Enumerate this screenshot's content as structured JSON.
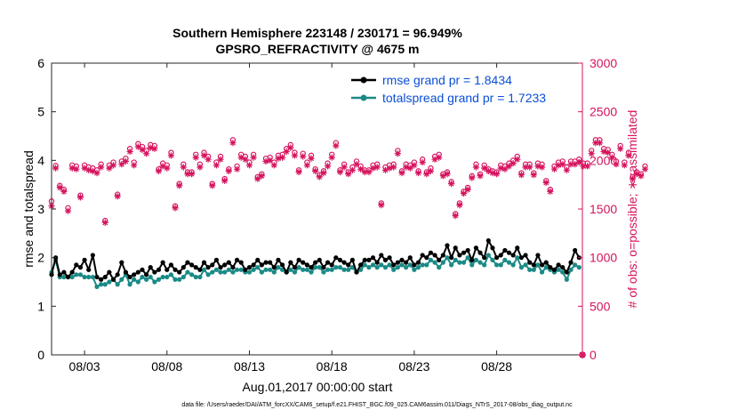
{
  "chart_data": {
    "type": "line",
    "title": "Southern Hemisphere 223148 / 230171 = 96.949%",
    "subtitle": "GPSRO_REFRACTIVITY @ 4675 m",
    "xlabel": "Aug.01,2017 00:00:00 start",
    "ylabel": "rmse and totalspread",
    "y2label": "# of obs: o=possible; ∗=assimilated",
    "xlim": [
      1,
      33.2
    ],
    "ylim": [
      0,
      6
    ],
    "y2lim": [
      0,
      3000
    ],
    "x_ticks": [
      3,
      8,
      13,
      18,
      23,
      28
    ],
    "x_tick_labels": [
      "08/03",
      "08/08",
      "08/13",
      "08/18",
      "08/23",
      "08/28"
    ],
    "y_ticks": [
      "0",
      "1",
      "2",
      "3",
      "4",
      "5",
      "6"
    ],
    "y2_ticks": [
      "0",
      "500",
      "1000",
      "1500",
      "2000",
      "2500",
      "3000"
    ],
    "legend_position": "top-right",
    "x_step_days": 0.25,
    "series": [
      {
        "name": "rmse grand pr = 1.8434",
        "axis": "left",
        "color": "#000000",
        "values": [
          1.65,
          2.0,
          1.65,
          1.7,
          1.6,
          1.7,
          1.85,
          1.8,
          1.95,
          1.75,
          2.05,
          1.6,
          1.55,
          1.6,
          1.7,
          1.55,
          1.65,
          1.9,
          1.7,
          1.6,
          1.65,
          1.7,
          1.75,
          1.65,
          1.8,
          1.7,
          1.75,
          1.9,
          1.75,
          1.85,
          1.75,
          1.7,
          1.8,
          1.9,
          1.85,
          1.8,
          1.75,
          1.9,
          1.8,
          1.85,
          1.95,
          1.8,
          1.85,
          1.9,
          1.8,
          1.95,
          1.9,
          1.75,
          1.8,
          1.85,
          1.95,
          1.85,
          1.9,
          1.9,
          1.8,
          1.95,
          1.85,
          1.7,
          1.9,
          1.8,
          1.95,
          1.9,
          1.85,
          1.8,
          1.9,
          1.95,
          1.8,
          1.9,
          1.85,
          2.0,
          1.95,
          1.9,
          1.85,
          1.95,
          1.7,
          1.85,
          1.95,
          1.95,
          2.0,
          1.9,
          2.05,
          1.95,
          2.0,
          1.85,
          1.9,
          1.95,
          1.9,
          2.0,
          1.85,
          1.9,
          2.05,
          2.0,
          2.1,
          2.05,
          1.95,
          2.05,
          2.25,
          2.0,
          2.2,
          2.05,
          2.1,
          2.15,
          1.95,
          2.2,
          2.1,
          2.0,
          2.35,
          2.2,
          2.0,
          2.05,
          2.15,
          2.1,
          2.05,
          2.2,
          2.0,
          2.05,
          1.9,
          1.85,
          2.05,
          1.85,
          1.9,
          1.8,
          1.75,
          1.85,
          1.8,
          1.7,
          1.9,
          2.15,
          2.0
        ]
      },
      {
        "name": "totalspread grand pr = 1.7233",
        "axis": "left",
        "color": "#1a8a86",
        "values": [
          1.7,
          1.95,
          1.6,
          1.6,
          1.6,
          1.6,
          1.65,
          1.65,
          1.6,
          1.6,
          1.6,
          1.4,
          1.45,
          1.45,
          1.5,
          1.55,
          1.45,
          1.55,
          1.65,
          1.45,
          1.55,
          1.5,
          1.6,
          1.55,
          1.6,
          1.5,
          1.55,
          1.6,
          1.6,
          1.65,
          1.55,
          1.55,
          1.6,
          1.7,
          1.65,
          1.6,
          1.6,
          1.75,
          1.65,
          1.7,
          1.75,
          1.7,
          1.7,
          1.75,
          1.7,
          1.75,
          1.75,
          1.7,
          1.7,
          1.75,
          1.8,
          1.7,
          1.75,
          1.75,
          1.7,
          1.8,
          1.75,
          1.7,
          1.75,
          1.7,
          1.8,
          1.75,
          1.75,
          1.7,
          1.8,
          1.8,
          1.7,
          1.75,
          1.75,
          1.8,
          1.8,
          1.75,
          1.75,
          1.8,
          1.7,
          1.75,
          1.85,
          1.8,
          1.85,
          1.8,
          1.85,
          1.8,
          1.85,
          1.75,
          1.8,
          1.85,
          1.8,
          1.85,
          1.75,
          1.8,
          1.85,
          1.85,
          1.95,
          1.9,
          1.8,
          1.9,
          2.0,
          1.85,
          1.95,
          1.9,
          1.9,
          2.0,
          1.85,
          1.95,
          1.9,
          1.85,
          2.05,
          1.95,
          1.85,
          1.85,
          1.95,
          1.9,
          1.85,
          2.0,
          1.8,
          1.85,
          1.75,
          1.75,
          1.85,
          1.7,
          1.8,
          1.75,
          1.7,
          1.75,
          1.7,
          1.55,
          1.75,
          1.85,
          1.8
        ]
      },
      {
        "name": "possible obs",
        "axis": "right",
        "color": "#d6135e",
        "marker": "o",
        "values": [
          1580,
          1945,
          1740,
          1700,
          1510,
          1950,
          1940,
          1640,
          1950,
          1930,
          1920,
          1900,
          1960,
          1380,
          1950,
          1980,
          1650,
          1990,
          2020,
          2120,
          1980,
          2170,
          2140,
          2100,
          2160,
          2150,
          1910,
          1970,
          1950,
          2080,
          1530,
          1760,
          1960,
          1880,
          1880,
          2060,
          1960,
          2080,
          2040,
          1760,
          1980,
          2040,
          1810,
          1910,
          2210,
          1940,
          2060,
          2040,
          1980,
          2060,
          1830,
          1860,
          2020,
          2030,
          1980,
          2050,
          2060,
          2120,
          2160,
          2080,
          1900,
          2070,
          1980,
          2050,
          1910,
          1850,
          1890,
          1970,
          2060,
          2180,
          1900,
          1960,
          1880,
          1930,
          1990,
          1940,
          1900,
          1900,
          1950,
          1960,
          1560,
          1930,
          1950,
          1960,
          2100,
          1890,
          1960,
          1950,
          1980,
          1890,
          2010,
          1880,
          1920,
          2040,
          2060,
          1860,
          1880,
          1780,
          1450,
          1560,
          1680,
          1720,
          1840,
          1960,
          1860,
          1950,
          1910,
          1890,
          1880,
          1950,
          1940,
          1970,
          2000,
          2040,
          1870,
          1960,
          1960,
          1870,
          1970,
          1960,
          1790,
          1700,
          1940,
          1980,
          1990,
          1930,
          1990,
          1990,
          2010,
          1970,
          1970,
          2100,
          2210,
          2210,
          2120,
          2110,
          2060,
          1990,
          2150,
          1980,
          2080,
          1830,
          1880,
          1860,
          1940
        ]
      },
      {
        "name": "assimilated obs",
        "axis": "right",
        "color": "#d6135e",
        "marker": "*",
        "values": [
          1530,
          1920,
          1720,
          1680,
          1480,
          1920,
          1910,
          1620,
          1920,
          1900,
          1890,
          1870,
          1930,
          1360,
          1920,
          1950,
          1630,
          1960,
          1990,
          2090,
          1950,
          2140,
          2110,
          2070,
          2130,
          2120,
          1890,
          1940,
          1920,
          2050,
          1510,
          1740,
          1930,
          1860,
          1860,
          2030,
          1930,
          2050,
          2010,
          1740,
          1950,
          2010,
          1790,
          1890,
          2180,
          1910,
          2030,
          2010,
          1950,
          2030,
          1810,
          1840,
          1990,
          2000,
          1950,
          2020,
          2030,
          2090,
          2130,
          2050,
          1880,
          2040,
          1950,
          2020,
          1890,
          1830,
          1870,
          1940,
          2030,
          2150,
          1880,
          1930,
          1860,
          1900,
          1960,
          1910,
          1880,
          1880,
          1920,
          1930,
          1540,
          1900,
          1920,
          1930,
          2070,
          1870,
          1930,
          1920,
          1950,
          1870,
          1980,
          1860,
          1890,
          2010,
          2030,
          1840,
          1860,
          1760,
          1430,
          1540,
          1660,
          1700,
          1820,
          1930,
          1840,
          1920,
          1890,
          1870,
          1860,
          1920,
          1910,
          1940,
          1970,
          2010,
          1850,
          1930,
          1930,
          1850,
          1940,
          1930,
          1770,
          1680,
          1910,
          1950,
          1960,
          1900,
          1960,
          1960,
          1980,
          1940,
          1940,
          2070,
          2180,
          2180,
          2090,
          2080,
          2030,
          1960,
          2120,
          1950,
          2050,
          1810,
          1860,
          1840,
          1910
        ]
      }
    ],
    "extra_points": [
      {
        "series": "possible obs",
        "x": 33.2,
        "y": 0
      },
      {
        "series": "assimilated obs",
        "x": 33.2,
        "y": 0
      }
    ]
  },
  "footer": {
    "data_file": "data file: /Users/raeder/DAI/ATM_forcXX/CAM6_setup/f.e21.FHIST_BGC.f09_025.CAM6assim.011/Diags_NTrS_2017-08/obs_diag_output.nc"
  }
}
